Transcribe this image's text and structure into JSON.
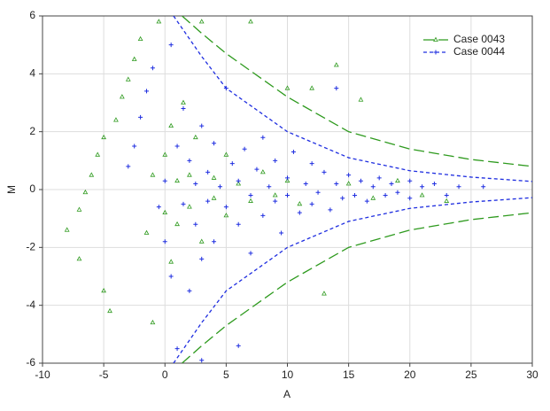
{
  "chart_data": {
    "type": "scatter",
    "x_label": "A",
    "y_label": "M",
    "xlim": [
      -10,
      30
    ],
    "ylim": [
      -6,
      6
    ],
    "xticks": [
      -10,
      -5,
      0,
      5,
      10,
      15,
      20,
      25,
      30
    ],
    "yticks": [
      -6,
      -4,
      -2,
      0,
      2,
      4,
      6
    ],
    "grid": true,
    "legend": "top-right",
    "series": [
      {
        "name": "Case 0043",
        "color": "#2e9a1e",
        "marker": "triangle",
        "x": [
          -8,
          -7,
          -7,
          -6.5,
          -6,
          -5.5,
          -5,
          -5,
          -4.5,
          -4,
          -3.5,
          -3,
          -2.5,
          -2,
          -1.5,
          -1,
          -1,
          -0.5,
          0,
          0,
          0.5,
          0.5,
          1,
          1,
          1.5,
          2,
          2,
          2.5,
          3,
          3,
          4,
          4,
          5,
          5,
          6,
          7,
          7,
          8,
          9,
          10,
          10,
          11,
          12,
          13,
          14,
          15,
          16,
          17,
          19,
          21,
          23
        ],
        "y": [
          -1.4,
          -2.4,
          -0.7,
          -0.1,
          0.5,
          1.2,
          1.8,
          -3.5,
          -4.2,
          2.4,
          3.2,
          3.8,
          4.5,
          5.2,
          -1.5,
          0.5,
          -4.6,
          5.8,
          1.2,
          -0.8,
          2.2,
          -2.5,
          0.3,
          -1.2,
          3.0,
          0.5,
          -0.6,
          1.8,
          5.8,
          -1.8,
          0.4,
          -0.3,
          1.2,
          -0.9,
          0.2,
          5.8,
          -0.4,
          0.6,
          -0.2,
          3.5,
          0.3,
          -0.5,
          3.5,
          -3.6,
          4.3,
          0.2,
          3.1,
          -0.3,
          0.3,
          -0.2,
          -0.4
        ],
        "curve": {
          "x": [
            1.4,
            3,
            5,
            10,
            15,
            20,
            25,
            30
          ],
          "upper": [
            6,
            5.4,
            4.7,
            3.2,
            2.0,
            1.4,
            1.04,
            0.8
          ],
          "lower": [
            -6,
            -5.4,
            -4.7,
            -3.2,
            -2.0,
            -1.4,
            -1.04,
            -0.8
          ]
        }
      },
      {
        "name": "Case 0044",
        "color": "#1f2ee0",
        "marker": "plus",
        "x": [
          -3,
          -2.5,
          -2,
          -1.5,
          -1,
          -0.5,
          0,
          0,
          0.5,
          0.5,
          1,
          1,
          1.5,
          1.5,
          2,
          2,
          2.5,
          2.5,
          3,
          3,
          3.5,
          3.5,
          4,
          4,
          4.5,
          5,
          5,
          5.5,
          6,
          6,
          6.5,
          7,
          7,
          7.5,
          8,
          8,
          8.5,
          9,
          9,
          9.5,
          10,
          10,
          10.5,
          11,
          11.5,
          12,
          12,
          12.5,
          13,
          13.5,
          14,
          14,
          14.5,
          15,
          15.5,
          16,
          16.5,
          17,
          17.5,
          18,
          18.5,
          19,
          20,
          20,
          21,
          22,
          23,
          24,
          26,
          3,
          6
        ],
        "y": [
          0.8,
          1.5,
          2.5,
          3.4,
          4.2,
          -0.6,
          0.3,
          -1.8,
          5,
          -3,
          1.5,
          -5.5,
          -0.5,
          2.8,
          -3.5,
          1,
          0.2,
          -1.2,
          2.2,
          -2.4,
          0.6,
          -0.4,
          1.6,
          -1.8,
          0.1,
          -0.6,
          3.5,
          0.9,
          -1.2,
          0.3,
          1.4,
          -0.2,
          -2.2,
          0.7,
          -0.9,
          1.8,
          0.1,
          -0.4,
          1.0,
          -1.5,
          0.4,
          -0.2,
          1.3,
          -0.8,
          0.2,
          0.9,
          -0.5,
          -0.1,
          0.6,
          -0.7,
          0.2,
          3.5,
          -0.3,
          0.5,
          -0.2,
          0.3,
          -0.4,
          0.1,
          0.4,
          -0.2,
          0.2,
          -0.1,
          0.3,
          -0.3,
          0.1,
          0.2,
          -0.2,
          0.1,
          0.1,
          -5.9,
          -5.4
        ],
        "curve": {
          "x": [
            0.7,
            3,
            5,
            10,
            15,
            20,
            25,
            30
          ],
          "upper": [
            6,
            4.6,
            3.5,
            2.0,
            1.1,
            0.65,
            0.43,
            0.28
          ],
          "lower": [
            -6,
            -4.6,
            -3.5,
            -2.0,
            -1.1,
            -0.65,
            -0.43,
            -0.28
          ]
        }
      }
    ]
  }
}
